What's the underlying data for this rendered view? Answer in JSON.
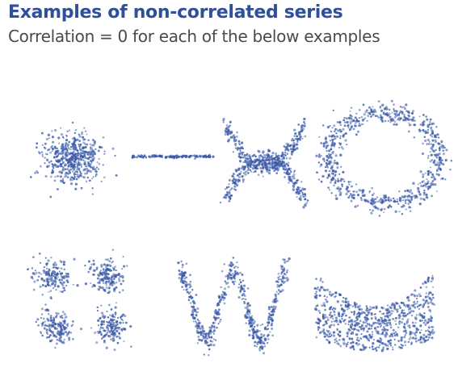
{
  "colors": {
    "title": "#2f4f9a",
    "subtitle": "#4a4a4a",
    "points": "#3a5aa8",
    "background": "#ffffff"
  },
  "heading": {
    "title": "Examples of non-correlated series",
    "subtitle": "Correlation = 0 for each of the below examples"
  },
  "chart_data": [
    {
      "type": "scatter",
      "pattern": "gaussian-blob",
      "correlation": 0
    },
    {
      "type": "scatter",
      "pattern": "horizontal-line",
      "correlation": 0
    },
    {
      "type": "scatter",
      "pattern": "x-shape",
      "correlation": 0
    },
    {
      "type": "scatter",
      "pattern": "ring",
      "correlation": 0
    },
    {
      "type": "scatter",
      "pattern": "four-clusters",
      "correlation": 0
    },
    {
      "type": "scatter",
      "pattern": "w-shape",
      "correlation": 0
    },
    {
      "type": "scatter",
      "pattern": "u-shape-filled",
      "correlation": 0
    }
  ]
}
